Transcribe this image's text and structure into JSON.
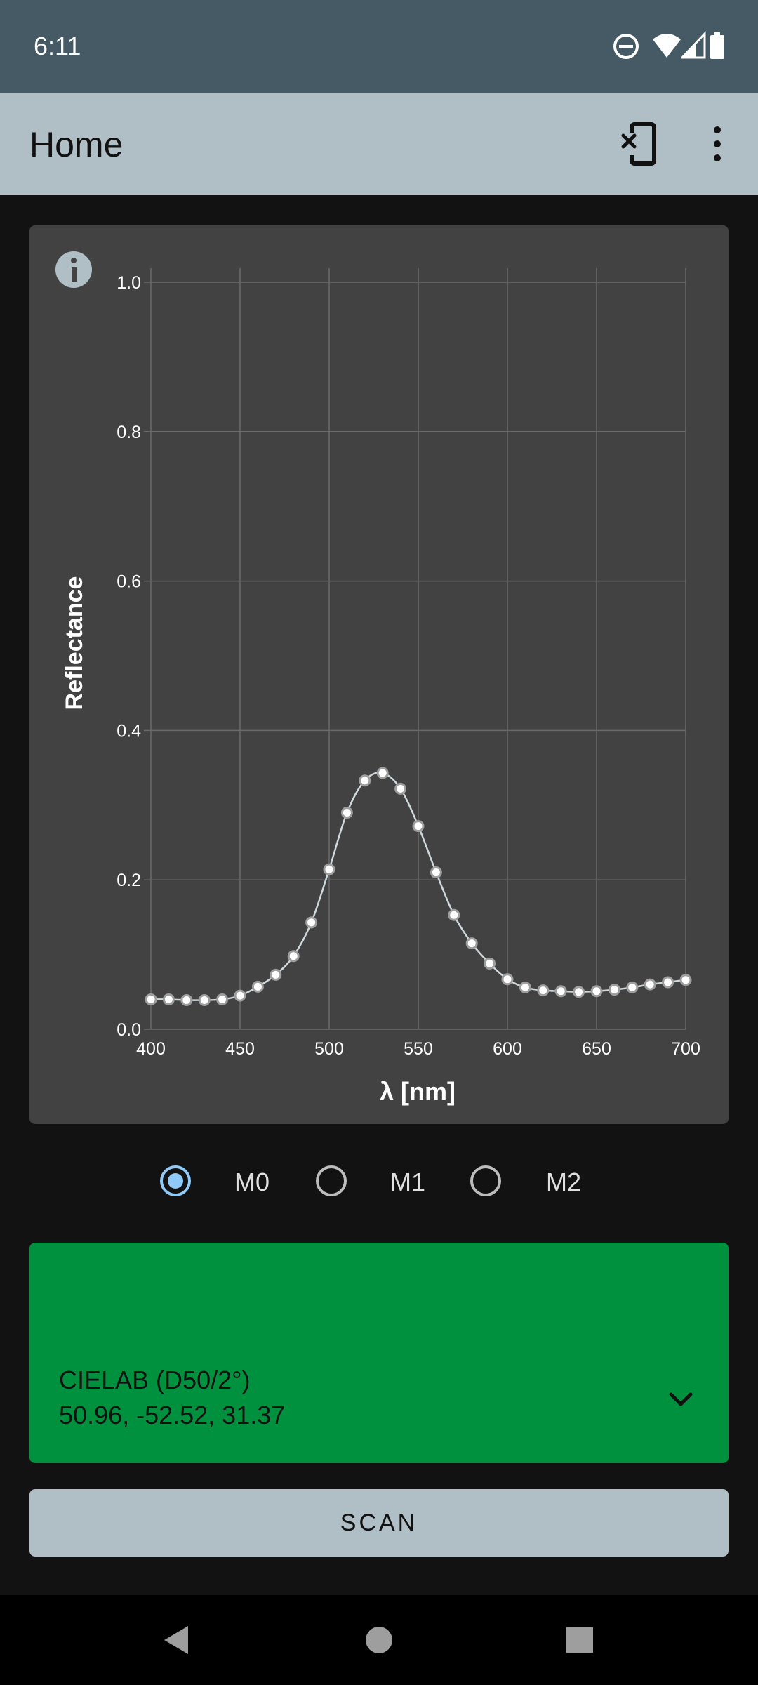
{
  "status_bar": {
    "time": "6:11",
    "icons": [
      "do-not-disturb-icon",
      "wifi-icon",
      "cell-signal-icon",
      "battery-icon"
    ]
  },
  "app_bar": {
    "title": "Home",
    "actions": [
      "disconnect-device-icon",
      "more-vert-icon"
    ]
  },
  "chart_data": {
    "type": "line",
    "xlabel": "λ [nm]",
    "ylabel": "Reflectance",
    "xlim": [
      400,
      700
    ],
    "ylim": [
      0,
      1.0
    ],
    "x_ticks": [
      "400",
      "450",
      "500",
      "550",
      "600",
      "650",
      "700"
    ],
    "y_ticks": [
      "0.0",
      "0.2",
      "0.4",
      "0.6",
      "0.8",
      "1.0"
    ],
    "grid": true,
    "series": [
      {
        "x": [
          400,
          410,
          420,
          430,
          440,
          450,
          460,
          470,
          480,
          490,
          500,
          510,
          520,
          530,
          540,
          550,
          560,
          570,
          580,
          590,
          600,
          610,
          620,
          630,
          640,
          650,
          660,
          670,
          680,
          690,
          700
        ],
        "values": [
          0.04,
          0.04,
          0.039,
          0.039,
          0.04,
          0.045,
          0.057,
          0.073,
          0.098,
          0.143,
          0.214,
          0.29,
          0.333,
          0.343,
          0.322,
          0.272,
          0.21,
          0.153,
          0.115,
          0.088,
          0.067,
          0.056,
          0.052,
          0.051,
          0.05,
          0.051,
          0.053,
          0.056,
          0.06,
          0.063,
          0.066
        ]
      }
    ],
    "colors": {
      "line": "#cfd8dc",
      "grid": "#6a6a6a",
      "background": "#424242"
    }
  },
  "info_icon": "info-icon",
  "measurement_modes": {
    "options": [
      "M0",
      "M1",
      "M2"
    ],
    "selected": "M0"
  },
  "color_result": {
    "mode_label": "CIELAB (D50/2°)",
    "values": "50.96, -52.52, 31.37",
    "swatch_color": "#00913f",
    "expand_icon": "chevron-down-icon"
  },
  "scan_button": {
    "label": "SCAN"
  },
  "nav_bar": {
    "icons": [
      "back-icon",
      "home-icon",
      "recents-icon"
    ]
  }
}
